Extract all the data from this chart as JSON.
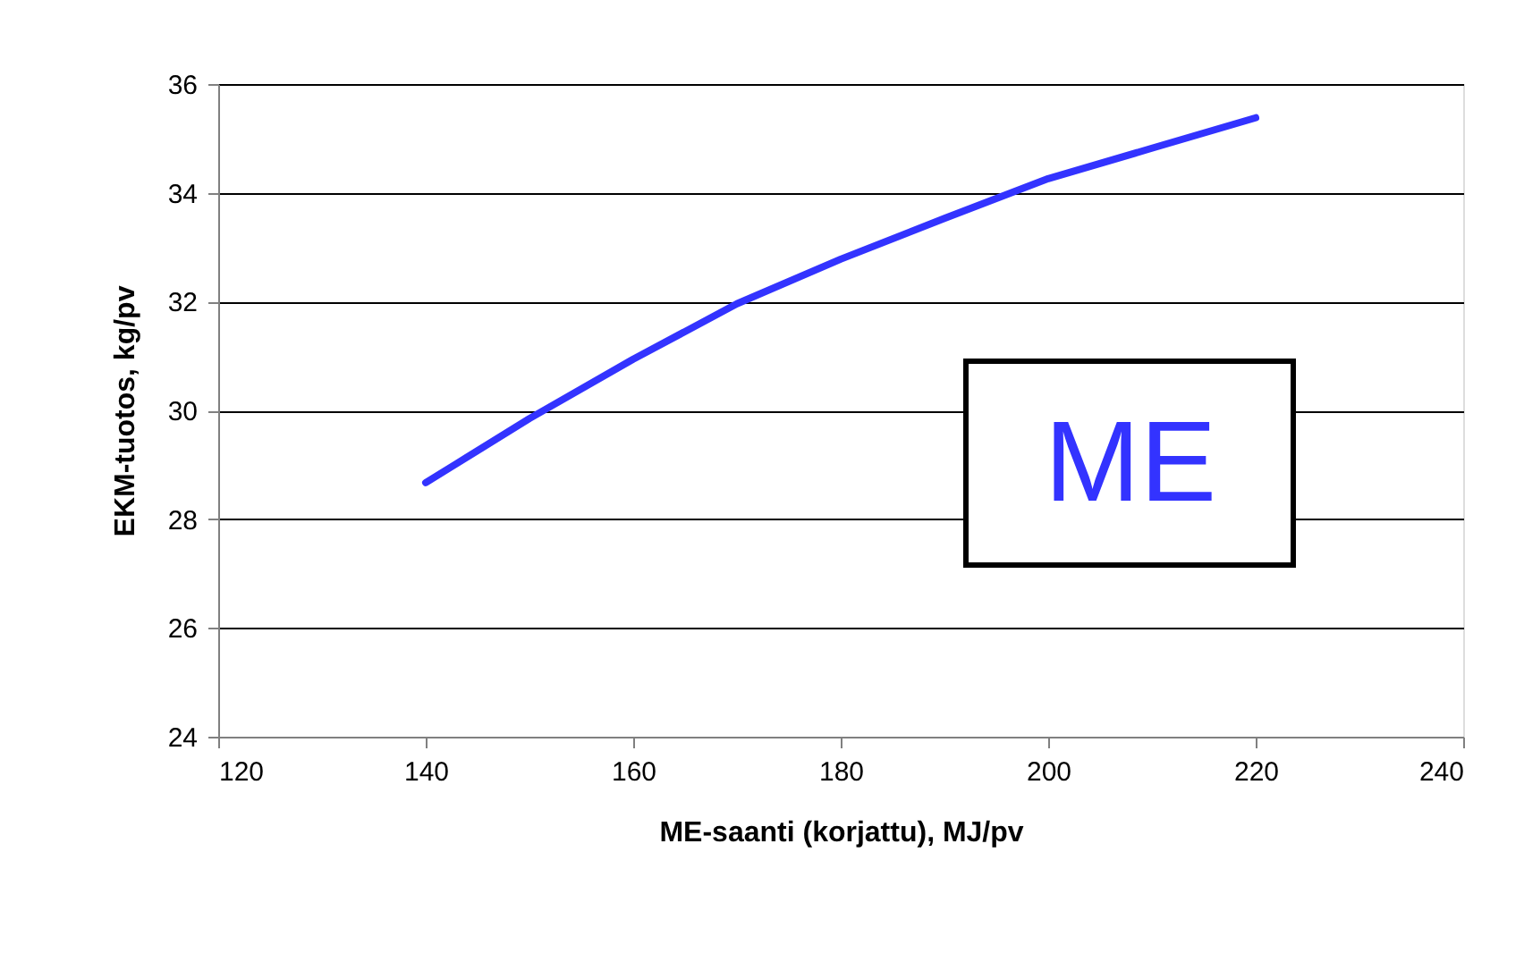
{
  "chart_data": {
    "type": "line",
    "xlabel": "ME-saanti (korjattu), MJ/pv",
    "ylabel": "EKM-tuotos, kg/pv",
    "x": [
      140,
      150,
      160,
      170,
      180,
      190,
      200,
      210,
      220
    ],
    "series": [
      {
        "color": "#3333ff",
        "values": [
          28.67,
          29.85,
          30.94,
          31.96,
          32.78,
          33.53,
          34.26,
          34.82,
          35.38
        ]
      }
    ],
    "xlim": [
      120,
      240
    ],
    "xticks": [
      120,
      140,
      160,
      180,
      200,
      220,
      240
    ],
    "ylim": [
      24,
      36
    ],
    "yticks": [
      24,
      26,
      28,
      30,
      32,
      34,
      36
    ],
    "grid": "y",
    "marker": "none",
    "line_style": "solid",
    "annotations": [
      "ME"
    ]
  }
}
